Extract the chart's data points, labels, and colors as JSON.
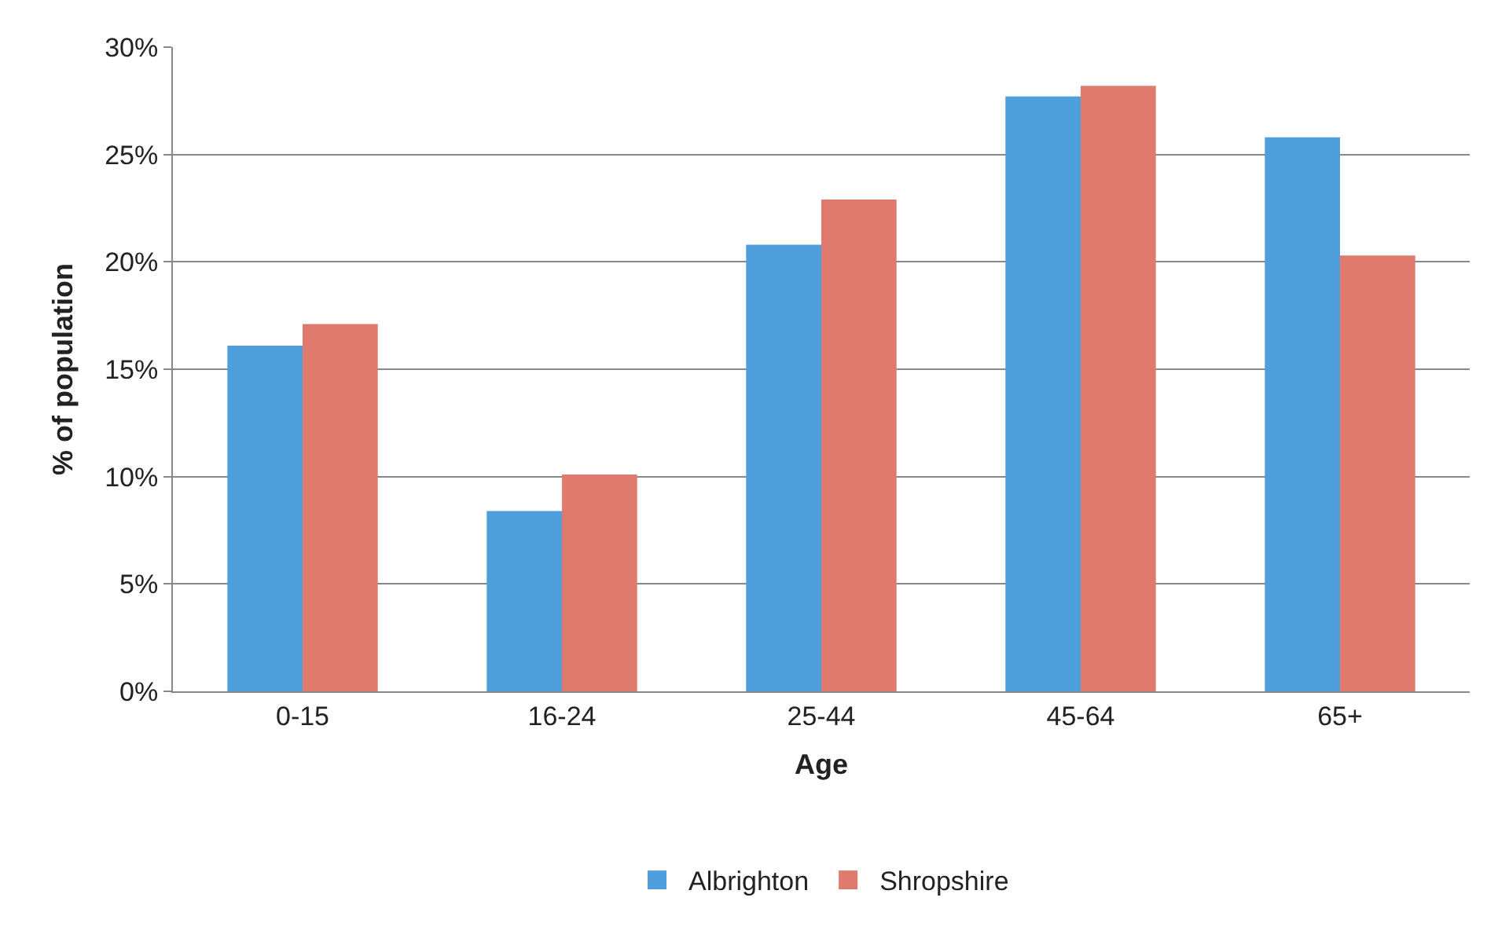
{
  "chart_data": {
    "type": "bar",
    "xlabel": "Age",
    "ylabel": "% of population",
    "categories": [
      "0-15",
      "16-24",
      "25-44",
      "45-64",
      "65+"
    ],
    "series": [
      {
        "name": "Albrighton",
        "color": "#4f9fdc",
        "values": [
          16.1,
          8.4,
          20.8,
          27.7,
          25.8
        ]
      },
      {
        "name": "Shropshire",
        "color": "#e07a6f",
        "values": [
          17.1,
          10.1,
          22.9,
          28.2,
          20.3
        ]
      }
    ],
    "ylim": [
      0,
      30
    ],
    "yticks": [
      {
        "value": 0,
        "label": "0%"
      },
      {
        "value": 5,
        "label": "5%"
      },
      {
        "value": 10,
        "label": "10%"
      },
      {
        "value": 15,
        "label": "15%"
      },
      {
        "value": 20,
        "label": "20%"
      },
      {
        "value": 25,
        "label": "25%"
      },
      {
        "value": 30,
        "label": "30%"
      }
    ],
    "grid": "y",
    "legend": "bottom"
  }
}
